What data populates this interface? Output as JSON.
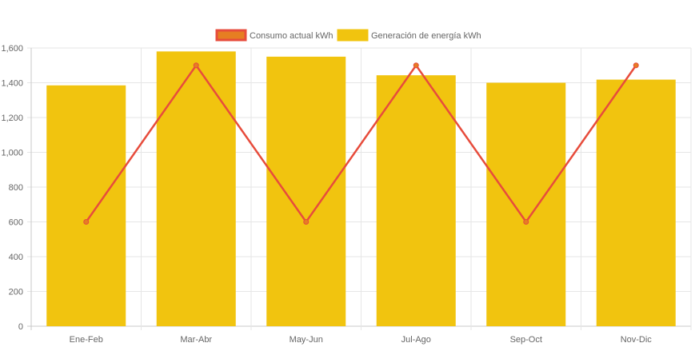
{
  "chart_data": {
    "type": "bar",
    "categories": [
      "Ene-Feb",
      "Mar-Abr",
      "May-Jun",
      "Jul-Ago",
      "Sep-Oct",
      "Nov-Dic"
    ],
    "series": [
      {
        "name": "Consumo actual kWh",
        "kind": "line",
        "values": [
          600,
          1500,
          600,
          1500,
          600,
          1500
        ],
        "color": "#e74c3c",
        "fill": "#e67e22"
      },
      {
        "name": "Generación de energía kWh",
        "kind": "bar",
        "values": [
          1385,
          1580,
          1550,
          1443,
          1400,
          1418
        ],
        "color": "#f1c40f"
      }
    ],
    "ylim": [
      0,
      1600
    ],
    "yticks": [
      0,
      200,
      400,
      600,
      800,
      1000,
      1200,
      1400,
      1600
    ],
    "ytick_labels": [
      "0",
      "200",
      "400",
      "600",
      "800",
      "1,000",
      "1,200",
      "1,400",
      "1,600"
    ],
    "grid": true,
    "legend": "top-center",
    "title": "",
    "xlabel": "",
    "ylabel": ""
  }
}
